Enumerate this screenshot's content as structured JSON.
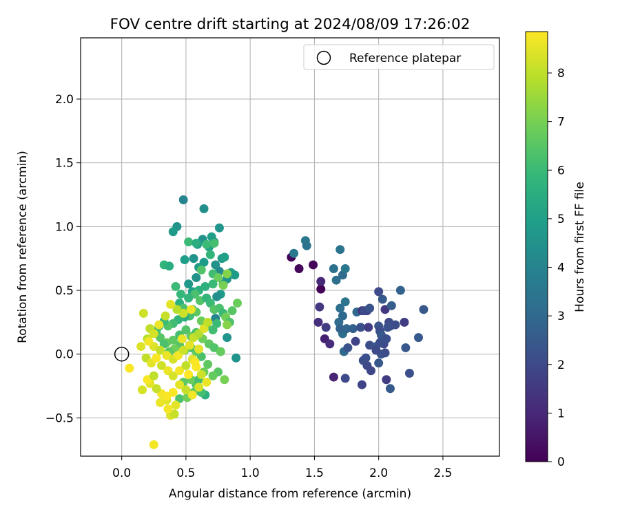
{
  "chart_data": {
    "type": "scatter",
    "title": "FOV centre drift starting at 2024/08/09 17:26:02",
    "xlabel": "Angular distance from reference (arcmin)",
    "ylabel": "Rotation from reference (arcmin)",
    "xlim": [
      -0.32,
      2.94
    ],
    "ylim": [
      -0.8,
      2.48
    ],
    "xticks": [
      "0.0",
      "0.5",
      "1.0",
      "1.5",
      "2.0",
      "2.5"
    ],
    "xtick_values": [
      0,
      0.5,
      1.0,
      1.5,
      2.0,
      2.5
    ],
    "yticks": [
      "−0.5",
      "0.0",
      "0.5",
      "1.0",
      "1.5",
      "2.0"
    ],
    "ytick_values": [
      -0.5,
      0,
      0.5,
      1.0,
      1.5,
      2.0
    ],
    "grid": true,
    "legend": {
      "position": "top-right",
      "entries": [
        "Reference platepar"
      ]
    },
    "reference": {
      "x": 0.0,
      "y": 0.0,
      "marker": "open-circle"
    },
    "colorbar": {
      "label": "Hours from first FF file",
      "range": [
        0,
        8.85
      ],
      "ticks": [
        "0",
        "1",
        "2",
        "3",
        "4",
        "5",
        "6",
        "7",
        "8"
      ],
      "tick_values": [
        0,
        1,
        2,
        3,
        4,
        5,
        6,
        7,
        8
      ],
      "colormap": "viridis"
    },
    "colormap_stops": [
      "#440154",
      "#482878",
      "#3e4989",
      "#31688e",
      "#26828e",
      "#1f9e89",
      "#35b779",
      "#6ece58",
      "#b5de2b",
      "#fde725"
    ],
    "points": [
      [
        1.32,
        0.76,
        0.1
      ],
      [
        1.38,
        0.67,
        0.15
      ],
      [
        1.49,
        0.7,
        0.1
      ],
      [
        1.55,
        0.51,
        0.05
      ],
      [
        1.55,
        0.57,
        1.0
      ],
      [
        1.54,
        0.37,
        1.5
      ],
      [
        1.53,
        0.25,
        1.2
      ],
      [
        1.58,
        0.12,
        0.8
      ],
      [
        1.62,
        0.08,
        1.1
      ],
      [
        1.65,
        -0.18,
        0.9
      ],
      [
        1.59,
        0.21,
        1.6
      ],
      [
        1.34,
        0.79,
        3.6
      ],
      [
        1.43,
        0.89,
        3.5
      ],
      [
        1.44,
        0.85,
        3.4
      ],
      [
        1.65,
        0.67,
        3.3
      ],
      [
        1.7,
        0.82,
        3.4
      ],
      [
        1.67,
        0.58,
        3.2
      ],
      [
        1.72,
        0.62,
        3.1
      ],
      [
        1.74,
        0.67,
        3.5
      ],
      [
        1.7,
        0.36,
        3.2
      ],
      [
        1.72,
        0.3,
        3.0
      ],
      [
        1.74,
        0.41,
        3.4
      ],
      [
        1.69,
        0.25,
        3.1
      ],
      [
        1.72,
        0.16,
        3.2
      ],
      [
        1.7,
        0.2,
        2.8
      ],
      [
        1.75,
        0.2,
        2.9
      ],
      [
        1.73,
        0.02,
        3.0
      ],
      [
        1.8,
        0.2,
        2.7
      ],
      [
        1.83,
        0.33,
        3.0
      ],
      [
        1.74,
        -0.19,
        2.0
      ],
      [
        1.76,
        0.05,
        2.3
      ],
      [
        1.82,
        0.1,
        1.8
      ],
      [
        1.86,
        0.21,
        2.2
      ],
      [
        1.87,
        0.34,
        1.4
      ],
      [
        1.89,
        0.34,
        2.2
      ],
      [
        1.91,
        0.34,
        1.9
      ],
      [
        1.93,
        0.36,
        2.3
      ],
      [
        1.88,
        -0.05,
        2.1
      ],
      [
        1.9,
        -0.03,
        2.2
      ],
      [
        1.87,
        -0.24,
        1.8
      ],
      [
        1.91,
        -0.09,
        2.0
      ],
      [
        1.93,
        0.07,
        2.1
      ],
      [
        1.94,
        -0.13,
        1.9
      ],
      [
        1.92,
        0.21,
        1.6
      ],
      [
        2.0,
        0.49,
        2.0
      ],
      [
        2.03,
        0.43,
        2.5
      ],
      [
        2.05,
        0.35,
        1.5
      ],
      [
        2.0,
        0.22,
        2.3
      ],
      [
        2.01,
        0.18,
        2.1
      ],
      [
        2.02,
        0.15,
        2.4
      ],
      [
        2.04,
        0.08,
        2.0
      ],
      [
        2.06,
        0.12,
        2.2
      ],
      [
        2.02,
        0.0,
        2.3
      ],
      [
        2.0,
        -0.07,
        2.4
      ],
      [
        2.05,
        0.01,
        2.1
      ],
      [
        2.07,
        0.21,
        2.3
      ],
      [
        2.08,
        0.25,
        2.0
      ],
      [
        2.09,
        0.22,
        2.2
      ],
      [
        2.1,
        0.38,
        2.6
      ],
      [
        2.13,
        0.23,
        2.1
      ],
      [
        2.06,
        -0.2,
        1.6
      ],
      [
        2.09,
        -0.27,
        2.5
      ],
      [
        2.17,
        0.5,
        2.8
      ],
      [
        2.2,
        0.25,
        1.6
      ],
      [
        2.21,
        0.05,
        2.4
      ],
      [
        2.24,
        -0.15,
        2.2
      ],
      [
        2.31,
        0.13,
        2.5
      ],
      [
        2.35,
        0.35,
        2.4
      ],
      [
        1.98,
        0.06,
        2.4
      ],
      [
        2.01,
        0.09,
        2.2
      ],
      [
        1.98,
        0.03,
        2.0
      ],
      [
        0.48,
        1.21,
        4.0
      ],
      [
        0.64,
        1.14,
        4.4
      ],
      [
        0.76,
        0.99,
        4.6
      ],
      [
        0.43,
        1.0,
        4.5
      ],
      [
        0.4,
        0.96,
        4.8
      ],
      [
        0.63,
        0.9,
        4.5
      ],
      [
        0.7,
        0.92,
        5.0
      ],
      [
        0.72,
        0.88,
        4.6
      ],
      [
        0.68,
        0.84,
        5.1
      ],
      [
        0.59,
        0.86,
        4.8
      ],
      [
        0.49,
        0.74,
        4.9
      ],
      [
        0.56,
        0.75,
        4.6
      ],
      [
        0.64,
        0.72,
        4.8
      ],
      [
        0.73,
        0.7,
        4.5
      ],
      [
        0.78,
        0.75,
        4.8
      ],
      [
        0.8,
        0.76,
        5.0
      ],
      [
        0.76,
        0.65,
        4.2
      ],
      [
        0.82,
        0.59,
        4.6
      ],
      [
        0.85,
        0.64,
        4.9
      ],
      [
        0.88,
        0.62,
        4.8
      ],
      [
        0.79,
        0.55,
        4.6
      ],
      [
        0.77,
        0.47,
        4.8
      ],
      [
        0.74,
        0.45,
        4.4
      ],
      [
        0.73,
        0.28,
        4.0
      ],
      [
        0.82,
        0.13,
        4.6
      ],
      [
        0.89,
        -0.03,
        4.6
      ],
      [
        0.58,
        0.6,
        4.5
      ],
      [
        0.6,
        0.68,
        4.8
      ],
      [
        0.52,
        0.55,
        4.7
      ],
      [
        0.55,
        0.49,
        5.0
      ],
      [
        0.33,
        0.7,
        5.8
      ],
      [
        0.37,
        0.69,
        5.5
      ],
      [
        0.52,
        0.88,
        6.0
      ],
      [
        0.58,
        0.87,
        5.5
      ],
      [
        0.66,
        0.86,
        6.0
      ],
      [
        0.72,
        0.87,
        6.2
      ],
      [
        0.69,
        0.78,
        5.8
      ],
      [
        0.62,
        0.66,
        6.4
      ],
      [
        0.71,
        0.63,
        6.1
      ],
      [
        0.75,
        0.6,
        6.8
      ],
      [
        0.79,
        0.54,
        7.0
      ],
      [
        0.71,
        0.55,
        6.0
      ],
      [
        0.65,
        0.53,
        5.6
      ],
      [
        0.6,
        0.5,
        5.6
      ],
      [
        0.57,
        0.47,
        6.3
      ],
      [
        0.52,
        0.44,
        5.8
      ],
      [
        0.46,
        0.47,
        5.9
      ],
      [
        0.42,
        0.53,
        6.0
      ],
      [
        0.45,
        0.4,
        5.6
      ],
      [
        0.48,
        0.36,
        6.3
      ],
      [
        0.55,
        0.35,
        5.6
      ],
      [
        0.61,
        0.42,
        6.4
      ],
      [
        0.66,
        0.44,
        5.8
      ],
      [
        0.69,
        0.4,
        6.0
      ],
      [
        0.72,
        0.35,
        6.5
      ],
      [
        0.76,
        0.36,
        6.3
      ],
      [
        0.79,
        0.32,
        6.0
      ],
      [
        0.81,
        0.29,
        6.9
      ],
      [
        0.84,
        0.25,
        6.3
      ],
      [
        0.82,
        0.23,
        7.2
      ],
      [
        0.86,
        0.34,
        6.5
      ],
      [
        0.9,
        0.4,
        6.8
      ],
      [
        0.82,
        0.63,
        7.2
      ],
      [
        0.74,
        0.24,
        6.0
      ],
      [
        0.71,
        0.19,
        6.1
      ],
      [
        0.66,
        0.22,
        6.4
      ],
      [
        0.62,
        0.26,
        6.8
      ],
      [
        0.58,
        0.33,
        6.6
      ],
      [
        0.53,
        0.3,
        6.2
      ],
      [
        0.49,
        0.29,
        5.5
      ],
      [
        0.44,
        0.27,
        5.8
      ],
      [
        0.4,
        0.24,
        6.1
      ],
      [
        0.36,
        0.22,
        6.4
      ],
      [
        0.33,
        0.26,
        6.0
      ],
      [
        0.29,
        0.22,
        5.7
      ],
      [
        0.27,
        0.18,
        6.2
      ],
      [
        0.3,
        0.13,
        6.5
      ],
      [
        0.35,
        0.09,
        6.8
      ],
      [
        0.4,
        0.11,
        6.6
      ],
      [
        0.45,
        0.15,
        6.2
      ],
      [
        0.5,
        0.19,
        6.4
      ],
      [
        0.54,
        0.14,
        6.7
      ],
      [
        0.58,
        0.17,
        6.3
      ],
      [
        0.63,
        0.12,
        6.9
      ],
      [
        0.68,
        0.08,
        6.6
      ],
      [
        0.72,
        0.05,
        6.4
      ],
      [
        0.77,
        0.02,
        6.7
      ],
      [
        0.8,
        -0.2,
        7.0
      ],
      [
        0.75,
        -0.14,
        6.5
      ],
      [
        0.71,
        -0.17,
        6.7
      ],
      [
        0.65,
        -0.32,
        5.6
      ],
      [
        0.62,
        -0.3,
        6.2
      ],
      [
        0.58,
        -0.24,
        6.4
      ],
      [
        0.54,
        -0.2,
        6.8
      ],
      [
        0.48,
        -0.22,
        6.6
      ],
      [
        0.45,
        -0.35,
        6.3
      ],
      [
        0.51,
        -0.34,
        6.9
      ],
      [
        0.56,
        -0.3,
        6.5
      ],
      [
        0.6,
        -0.2,
        6.2
      ],
      [
        0.64,
        -0.14,
        6.9
      ],
      [
        0.67,
        -0.08,
        6.6
      ],
      [
        0.62,
        -0.02,
        6.3
      ],
      [
        0.58,
        0.02,
        6.7
      ],
      [
        0.54,
        0.05,
        6.4
      ],
      [
        0.49,
        0.03,
        6.8
      ],
      [
        0.45,
        0.07,
        6.5
      ],
      [
        0.41,
        0.04,
        6.9
      ],
      [
        0.37,
        0.02,
        6.6
      ],
      [
        0.33,
        0.08,
        6.3
      ],
      [
        0.17,
        0.32,
        8.2
      ],
      [
        0.22,
        0.2,
        8.0
      ],
      [
        0.2,
        0.12,
        7.9
      ],
      [
        0.25,
        0.06,
        8.4
      ],
      [
        0.3,
        0.03,
        8.1
      ],
      [
        0.35,
        -0.01,
        8.6
      ],
      [
        0.4,
        -0.04,
        8.3
      ],
      [
        0.44,
        -0.01,
        8.7
      ],
      [
        0.48,
        0.03,
        8.2
      ],
      [
        0.53,
        0.07,
        8.5
      ],
      [
        0.56,
        0.13,
        8.1
      ],
      [
        0.6,
        0.16,
        7.8
      ],
      [
        0.64,
        0.2,
        8.4
      ],
      [
        0.67,
        0.25,
        8.0
      ],
      [
        0.54,
        0.35,
        8.6
      ],
      [
        0.48,
        0.32,
        8.2
      ],
      [
        0.43,
        0.35,
        7.9
      ],
      [
        0.38,
        0.39,
        8.5
      ],
      [
        0.34,
        0.3,
        8.1
      ],
      [
        0.29,
        0.23,
        8.6
      ],
      [
        0.25,
        0.16,
        8.3
      ],
      [
        0.21,
        0.1,
        8.7
      ],
      [
        0.15,
        0.06,
        8.4
      ],
      [
        0.19,
        -0.03,
        8.0
      ],
      [
        0.23,
        -0.07,
        8.5
      ],
      [
        0.27,
        -0.03,
        8.8
      ],
      [
        0.31,
        -0.09,
        8.2
      ],
      [
        0.36,
        -0.13,
        8.6
      ],
      [
        0.4,
        -0.17,
        8.3
      ],
      [
        0.45,
        -0.13,
        8.7
      ],
      [
        0.5,
        -0.09,
        8.0
      ],
      [
        0.55,
        -0.04,
        8.4
      ],
      [
        0.58,
        -0.1,
        8.8
      ],
      [
        0.62,
        -0.16,
        8.2
      ],
      [
        0.66,
        -0.22,
        8.6
      ],
      [
        0.6,
        -0.26,
        8.3
      ],
      [
        0.55,
        -0.32,
        8.7
      ],
      [
        0.5,
        -0.28,
        8.1
      ],
      [
        0.45,
        -0.24,
        8.5
      ],
      [
        0.4,
        -0.3,
        8.8
      ],
      [
        0.35,
        -0.36,
        8.4
      ],
      [
        0.31,
        -0.31,
        8.7
      ],
      [
        0.27,
        -0.27,
        8.1
      ],
      [
        0.22,
        -0.23,
        8.5
      ],
      [
        0.2,
        -0.2,
        8.8
      ],
      [
        0.16,
        -0.28,
        8.3
      ],
      [
        0.25,
        -0.17,
        8.0
      ],
      [
        0.3,
        -0.38,
        8.6
      ],
      [
        0.38,
        -0.48,
        8.4
      ],
      [
        0.41,
        -0.47,
        8.1
      ],
      [
        0.36,
        -0.43,
        8.7
      ],
      [
        0.25,
        -0.71,
        8.7
      ],
      [
        0.06,
        -0.11,
        8.8
      ],
      [
        0.35,
        -0.33,
        8.8
      ],
      [
        0.42,
        -0.4,
        8.5
      ],
      [
        0.47,
        0.12,
        8.6
      ],
      [
        0.52,
        -0.16,
        8.9
      ],
      [
        0.6,
        0.04,
        8.5
      ],
      [
        0.57,
        -0.06,
        8.8
      ]
    ]
  }
}
